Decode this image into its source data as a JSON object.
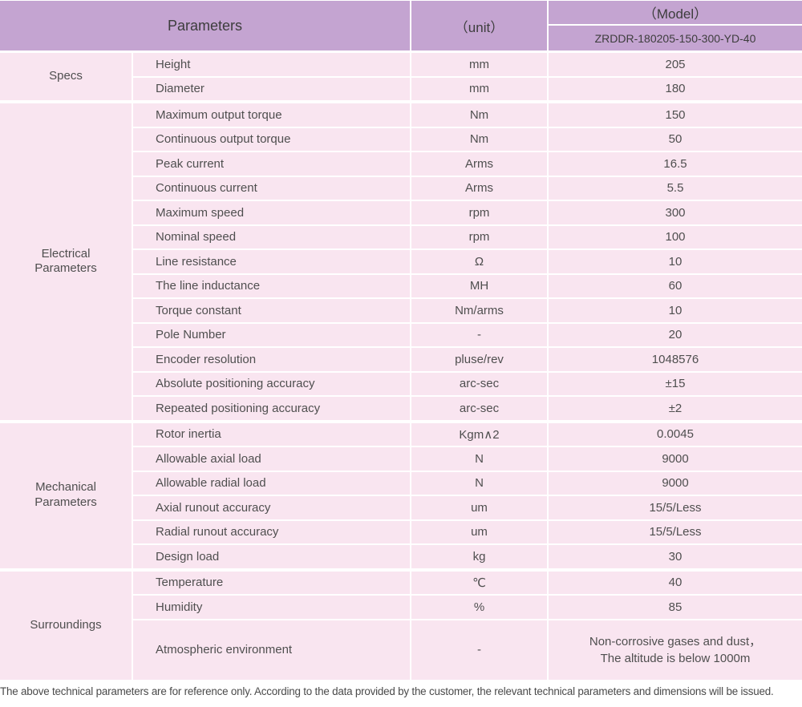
{
  "header": {
    "parameters_label": "Parameters",
    "unit_label": "（unit）",
    "model_label": "（Model）",
    "model_value": "ZRDDR-180205-150-300-YD-40"
  },
  "sections": [
    {
      "id": "specs",
      "group": "Specs",
      "rows": [
        {
          "name": "Height",
          "unit": "mm",
          "value": "205"
        },
        {
          "name": "Diameter",
          "unit": "mm",
          "value": "180"
        }
      ]
    },
    {
      "id": "electrical",
      "group": "Electrical\nParameters",
      "rows": [
        {
          "name": "Maximum output torque",
          "unit": "Nm",
          "value": "150"
        },
        {
          "name": "Continuous output torque",
          "unit": "Nm",
          "value": "50"
        },
        {
          "name": "Peak current",
          "unit": "Arms",
          "value": "16.5"
        },
        {
          "name": "Continuous current",
          "unit": "Arms",
          "value": "5.5"
        },
        {
          "name": "Maximum speed",
          "unit": "rpm",
          "value": "300"
        },
        {
          "name": "Nominal speed",
          "unit": "rpm",
          "value": "100"
        },
        {
          "name": "Line resistance",
          "unit": "Ω",
          "value": "10"
        },
        {
          "name": "The line inductance",
          "unit": "MH",
          "value": "60"
        },
        {
          "name": "Torque constant",
          "unit": "Nm/arms",
          "value": "10"
        },
        {
          "name": "Pole Number",
          "unit": "-",
          "value": "20"
        },
        {
          "name": "Encoder resolution",
          "unit": "pluse/rev",
          "value": "1048576"
        },
        {
          "name": "Absolute positioning accuracy",
          "unit": "arc-sec",
          "value": "±15"
        },
        {
          "name": "Repeated positioning accuracy",
          "unit": "arc-sec",
          "value": "±2"
        }
      ]
    },
    {
      "id": "mechanical",
      "group": "Mechanical\nParameters",
      "rows": [
        {
          "name": "Rotor inertia",
          "unit": "Kgm∧2",
          "value": "0.0045"
        },
        {
          "name": "Allowable axial load",
          "unit": "N",
          "value": "9000"
        },
        {
          "name": "Allowable radial load",
          "unit": "N",
          "value": "9000"
        },
        {
          "name": "Axial runout accuracy",
          "unit": "um",
          "value": "15/5/Less"
        },
        {
          "name": "Radial runout accuracy",
          "unit": "um",
          "value": "15/5/Less"
        },
        {
          "name": "Design load",
          "unit": "kg",
          "value": "30"
        }
      ]
    },
    {
      "id": "surroundings",
      "group": "Surroundings",
      "rows": [
        {
          "name": "Temperature",
          "unit": "℃",
          "value": "40"
        },
        {
          "name": "Humidity",
          "unit": "%",
          "value": "85"
        },
        {
          "name": "Atmospheric environment",
          "unit": "-",
          "value": "Non-corrosive gases and dust，\nThe altitude is below 1000m",
          "tall": true
        }
      ]
    }
  ],
  "footer": {
    "note": "The above technical parameters are for reference only. According to the data provided by the customer, the relevant technical parameters and dimensions will be issued."
  },
  "colors": {
    "header_bg": "#c4a4d1",
    "row_bg": "#f9e5f0",
    "header_text": "#3d3d3d",
    "body_text": "#4f4f4f"
  }
}
